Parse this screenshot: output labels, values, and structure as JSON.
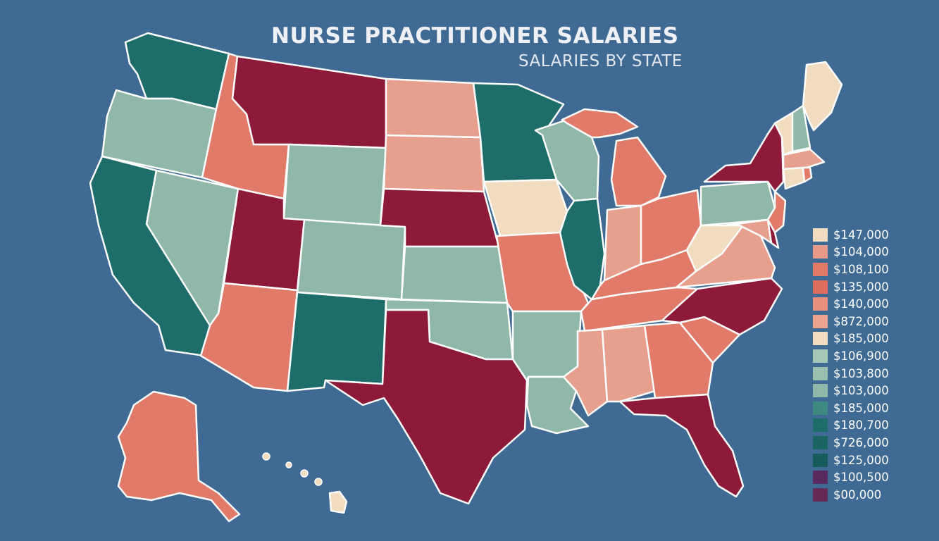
{
  "title": "NURSE PRACTITIONER SALARIES",
  "subtitle": "SALARIES BY STATE",
  "colors": {
    "background": "#3f6a93",
    "teal_dark": "#1d6e6a",
    "sage": "#8fb8a8",
    "salmon": "#e27a6a",
    "peach": "#e8a08e",
    "burgundy": "#8e1a3a",
    "cream": "#f1dcbf",
    "purple": "#5a2a5e",
    "border": "#ffffff"
  },
  "legend": [
    {
      "label": "$147,000",
      "color": "#f1dcbf"
    },
    {
      "label": "$104,000",
      "color": "#e89a88"
    },
    {
      "label": "$108,100",
      "color": "#e27a6a"
    },
    {
      "label": "$135,000",
      "color": "#dd6e5e"
    },
    {
      "label": "$140,000",
      "color": "#e8907e"
    },
    {
      "label": "$872,000",
      "color": "#eca48e"
    },
    {
      "label": "$185,000",
      "color": "#f1dcbf"
    },
    {
      "label": "$106,900",
      "color": "#a6c6b6"
    },
    {
      "label": "$103,800",
      "color": "#9bbfae"
    },
    {
      "label": "$103,000",
      "color": "#8fb8a8"
    },
    {
      "label": "$185,000",
      "color": "#3e8a80"
    },
    {
      "label": "$180,700",
      "color": "#1d6e6a"
    },
    {
      "label": "$726,000",
      "color": "#1a6562"
    },
    {
      "label": "$125,000",
      "color": "#175c5a"
    },
    {
      "label": "$100,500",
      "color": "#5a2a5e"
    },
    {
      "label": "$00,000",
      "color": "#662a55"
    }
  ],
  "states": [
    {
      "name": "washington-state",
      "fill": "#1d6e6a"
    },
    {
      "name": "oregon-state",
      "fill": "#8fb8a8"
    },
    {
      "name": "california-state",
      "fill": "#1d6e6a"
    },
    {
      "name": "nevada-state",
      "fill": "#8fb8a8"
    },
    {
      "name": "idaho-state",
      "fill": "#e27a6a"
    },
    {
      "name": "montana-state",
      "fill": "#8e1a3a"
    },
    {
      "name": "wyoming-state",
      "fill": "#8fb8a8"
    },
    {
      "name": "utah-state",
      "fill": "#8e1a3a"
    },
    {
      "name": "arizona-state",
      "fill": "#e27a6a"
    },
    {
      "name": "colorado-state",
      "fill": "#8fb8a8"
    },
    {
      "name": "new-mexico-state",
      "fill": "#1d6e6a"
    },
    {
      "name": "north-dakota-state",
      "fill": "#e8a08e"
    },
    {
      "name": "south-dakota-state",
      "fill": "#e8a08e"
    },
    {
      "name": "nebraska-state",
      "fill": "#8e1a3a"
    },
    {
      "name": "kansas-state",
      "fill": "#8fb8a8"
    },
    {
      "name": "oklahoma-state",
      "fill": "#8fb8a8"
    },
    {
      "name": "texas-state",
      "fill": "#8e1a3a"
    },
    {
      "name": "minnesota-state",
      "fill": "#1d6e6a"
    },
    {
      "name": "iowa-state",
      "fill": "#f1dcbf"
    },
    {
      "name": "missouri-state",
      "fill": "#e27a6a"
    },
    {
      "name": "arkansas-state",
      "fill": "#8fb8a8"
    },
    {
      "name": "louisiana-state",
      "fill": "#8fb8a8"
    },
    {
      "name": "wisconsin-state",
      "fill": "#8fb8a8"
    },
    {
      "name": "illinois-state",
      "fill": "#1d6e6a"
    },
    {
      "name": "michigan-upper-state",
      "fill": "#e27a6a"
    },
    {
      "name": "michigan-lower-state",
      "fill": "#e27a6a"
    },
    {
      "name": "indiana-state",
      "fill": "#e8a08e"
    },
    {
      "name": "ohio-state",
      "fill": "#e27a6a"
    },
    {
      "name": "kentucky-state",
      "fill": "#e27a6a"
    },
    {
      "name": "tennessee-state",
      "fill": "#e27a6a"
    },
    {
      "name": "mississippi-state",
      "fill": "#e8a08e"
    },
    {
      "name": "alabama-state",
      "fill": "#e8a08e"
    },
    {
      "name": "georgia-state",
      "fill": "#e27a6a"
    },
    {
      "name": "florida-state",
      "fill": "#8e1a3a"
    },
    {
      "name": "south-carolina-state",
      "fill": "#e27a6a"
    },
    {
      "name": "north-carolina-state",
      "fill": "#8e1a3a"
    },
    {
      "name": "virginia-state",
      "fill": "#e8a08e"
    },
    {
      "name": "west-virginia-state",
      "fill": "#f1dcbf"
    },
    {
      "name": "pennsylvania-state",
      "fill": "#8fb8a8"
    },
    {
      "name": "new-york-state",
      "fill": "#8e1a3a"
    },
    {
      "name": "new-jersey-state",
      "fill": "#e27a6a"
    },
    {
      "name": "maryland-state",
      "fill": "#e8a08e"
    },
    {
      "name": "delaware-state",
      "fill": "#8e1a3a"
    },
    {
      "name": "vermont-state",
      "fill": "#f1dcbf"
    },
    {
      "name": "new-hampshire-state",
      "fill": "#8fb8a8"
    },
    {
      "name": "maine-state",
      "fill": "#f1dcbf"
    },
    {
      "name": "massachusetts-state",
      "fill": "#e8a08e"
    },
    {
      "name": "connecticut-state",
      "fill": "#f1dcbf"
    },
    {
      "name": "rhode-island-state",
      "fill": "#e27a6a"
    },
    {
      "name": "alaska-state",
      "fill": "#e27a6a"
    },
    {
      "name": "hawaii-state",
      "fill": "#f1dcbf"
    }
  ]
}
